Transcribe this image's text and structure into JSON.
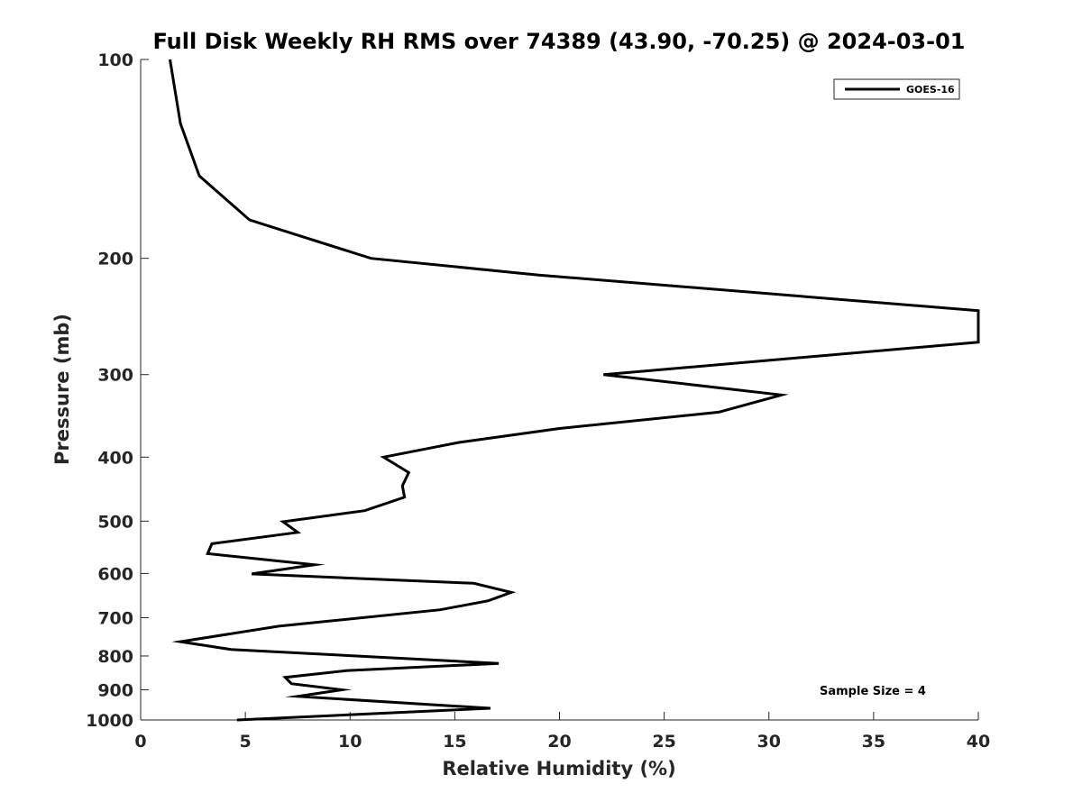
{
  "chart_data": {
    "type": "line",
    "title": "Full Disk Weekly RH RMS over 74389 (43.90, -70.25) @ 2024-03-01",
    "xlabel": "Relative Humidity (%)",
    "ylabel": "Pressure (mb)",
    "xlim": [
      0,
      40
    ],
    "ylim": [
      100,
      1000
    ],
    "y_scale": "log",
    "y_reversed": true,
    "grid": false,
    "legend_position": "top-right",
    "x_ticks": [
      0,
      5,
      10,
      15,
      20,
      25,
      30,
      35,
      40
    ],
    "y_ticks": [
      100,
      200,
      300,
      400,
      500,
      600,
      700,
      800,
      900,
      1000
    ],
    "series": [
      {
        "name": "GOES-16",
        "color": "#000000",
        "points": [
          {
            "x": 1.4,
            "y": 100
          },
          {
            "x": 1.9,
            "y": 125
          },
          {
            "x": 2.8,
            "y": 150
          },
          {
            "x": 5.2,
            "y": 175
          },
          {
            "x": 11.0,
            "y": 200
          },
          {
            "x": 19.0,
            "y": 212
          },
          {
            "x": 40.0,
            "y": 240
          },
          {
            "x": 40.0,
            "y": 268
          },
          {
            "x": 22.1,
            "y": 300
          },
          {
            "x": 30.6,
            "y": 322
          },
          {
            "x": 27.6,
            "y": 342
          },
          {
            "x": 20.0,
            "y": 362
          },
          {
            "x": 15.2,
            "y": 380
          },
          {
            "x": 11.6,
            "y": 400
          },
          {
            "x": 12.8,
            "y": 422
          },
          {
            "x": 12.5,
            "y": 442
          },
          {
            "x": 12.6,
            "y": 460
          },
          {
            "x": 10.7,
            "y": 482
          },
          {
            "x": 6.8,
            "y": 501
          },
          {
            "x": 7.5,
            "y": 520
          },
          {
            "x": 3.4,
            "y": 541
          },
          {
            "x": 3.2,
            "y": 560
          },
          {
            "x": 8.3,
            "y": 582
          },
          {
            "x": 5.3,
            "y": 601
          },
          {
            "x": 15.9,
            "y": 621
          },
          {
            "x": 17.7,
            "y": 641
          },
          {
            "x": 16.6,
            "y": 660
          },
          {
            "x": 14.3,
            "y": 681
          },
          {
            "x": 6.6,
            "y": 721
          },
          {
            "x": 1.9,
            "y": 761
          },
          {
            "x": 4.3,
            "y": 782
          },
          {
            "x": 17.1,
            "y": 821
          },
          {
            "x": 9.8,
            "y": 842
          },
          {
            "x": 6.9,
            "y": 862
          },
          {
            "x": 7.2,
            "y": 881
          },
          {
            "x": 9.6,
            "y": 900
          },
          {
            "x": 7.5,
            "y": 921
          },
          {
            "x": 16.7,
            "y": 960
          },
          {
            "x": 4.6,
            "y": 1000
          }
        ]
      }
    ],
    "annotations": [
      "Sample Size = 4"
    ]
  }
}
